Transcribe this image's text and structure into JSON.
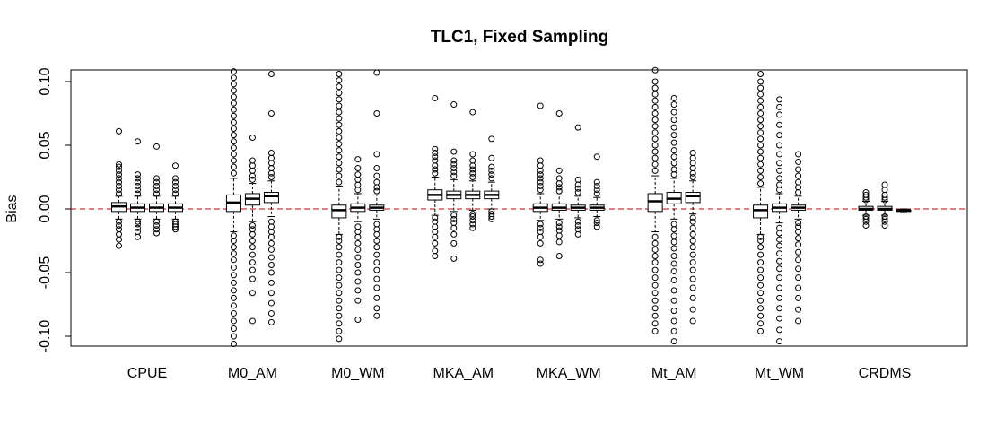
{
  "chart_data": {
    "type": "boxplot",
    "title": "TLC1, Fixed Sampling",
    "xlabel": "",
    "ylabel": "Bias",
    "ylim": [
      -0.11,
      0.11
    ],
    "yticks": [
      -0.1,
      -0.05,
      0.0,
      0.05,
      0.1
    ],
    "ytick_labels": [
      "-0.10",
      "-0.05",
      "0.00",
      "0.05",
      "0.10"
    ],
    "reference_line": {
      "y": 0.0,
      "color": "#cc0000",
      "style": "dashed"
    },
    "grid": false,
    "categories": [
      "CPUE",
      "M0_AM",
      "M0_WM",
      "MKA_AM",
      "MKA_WM",
      "Mt_AM",
      "Mt_WM",
      "CRDMS"
    ],
    "groups": [
      {
        "category": "CPUE",
        "boxes": [
          {
            "q1": -0.002,
            "median": 0.002,
            "q3": 0.005,
            "whisker_low": -0.008,
            "whisker_high": 0.01,
            "outliers": [
              -0.029,
              -0.024,
              -0.02,
              -0.016,
              -0.013,
              -0.01,
              0.012,
              0.015,
              0.018,
              0.021,
              0.024,
              0.027,
              0.03,
              0.033,
              0.035,
              0.061
            ]
          },
          {
            "q1": -0.002,
            "median": 0.001,
            "q3": 0.004,
            "whisker_low": -0.008,
            "whisker_high": 0.01,
            "outliers": [
              -0.022,
              -0.018,
              -0.015,
              -0.012,
              -0.01,
              0.012,
              0.015,
              0.018,
              0.021,
              0.024,
              0.027,
              0.053
            ]
          },
          {
            "q1": -0.002,
            "median": 0.001,
            "q3": 0.004,
            "whisker_low": -0.008,
            "whisker_high": 0.01,
            "outliers": [
              -0.019,
              -0.016,
              -0.013,
              -0.01,
              0.012,
              0.015,
              0.018,
              0.021,
              0.024,
              0.049
            ]
          },
          {
            "q1": -0.002,
            "median": 0.001,
            "q3": 0.004,
            "whisker_low": -0.008,
            "whisker_high": 0.01,
            "outliers": [
              -0.016,
              -0.014,
              -0.012,
              -0.01,
              0.012,
              0.015,
              0.018,
              0.021,
              0.024,
              0.034
            ]
          }
        ]
      },
      {
        "category": "M0_AM",
        "boxes": [
          {
            "q1": -0.002,
            "median": 0.005,
            "q3": 0.011,
            "whisker_low": -0.018,
            "whisker_high": 0.024,
            "outliers": [
              -0.106,
              -0.1,
              -0.094,
              -0.088,
              -0.082,
              -0.076,
              -0.07,
              -0.064,
              -0.058,
              -0.052,
              -0.046,
              -0.04,
              -0.035,
              -0.03,
              -0.025,
              -0.021,
              0.028,
              0.033,
              0.038,
              0.043,
              0.048,
              0.053,
              0.058,
              0.063,
              0.068,
              0.073,
              0.078,
              0.083,
              0.088,
              0.093,
              0.098,
              0.103,
              0.108
            ]
          },
          {
            "q1": 0.003,
            "median": 0.008,
            "q3": 0.012,
            "whisker_low": -0.01,
            "whisker_high": 0.02,
            "outliers": [
              -0.088,
              -0.066,
              -0.055,
              -0.048,
              -0.042,
              -0.036,
              -0.03,
              -0.025,
              -0.02,
              -0.016,
              -0.013,
              0.023,
              0.026,
              0.03,
              0.034,
              0.038,
              0.056
            ]
          },
          {
            "q1": 0.005,
            "median": 0.01,
            "q3": 0.013,
            "whisker_low": -0.006,
            "whisker_high": 0.022,
            "outliers": [
              -0.089,
              -0.082,
              -0.074,
              -0.066,
              -0.058,
              -0.05,
              -0.044,
              -0.038,
              -0.032,
              -0.027,
              -0.022,
              -0.018,
              -0.014,
              -0.01,
              0.025,
              0.028,
              0.032,
              0.036,
              0.04,
              0.044,
              0.075,
              0.106
            ]
          }
        ]
      },
      {
        "category": "M0_WM",
        "boxes": [
          {
            "q1": -0.007,
            "median": -0.001,
            "q3": 0.003,
            "whisker_low": -0.02,
            "whisker_high": 0.018,
            "outliers": [
              -0.108,
              -0.102,
              -0.096,
              -0.09,
              -0.084,
              -0.078,
              -0.072,
              -0.066,
              -0.06,
              -0.054,
              -0.048,
              -0.042,
              -0.036,
              -0.03,
              -0.025,
              -0.022,
              0.021,
              0.026,
              0.031,
              0.036,
              0.041,
              0.046,
              0.051,
              0.056,
              0.061,
              0.066,
              0.071,
              0.076,
              0.081,
              0.086,
              0.091,
              0.096,
              0.101,
              0.106
            ]
          },
          {
            "q1": -0.002,
            "median": 0.001,
            "q3": 0.004,
            "whisker_low": -0.01,
            "whisker_high": 0.012,
            "outliers": [
              -0.087,
              -0.072,
              -0.064,
              -0.057,
              -0.05,
              -0.044,
              -0.038,
              -0.032,
              -0.027,
              -0.022,
              -0.018,
              -0.014,
              0.015,
              0.019,
              0.023,
              0.027,
              0.032,
              0.039
            ]
          },
          {
            "q1": -0.001,
            "median": 0.001,
            "q3": 0.003,
            "whisker_low": -0.008,
            "whisker_high": 0.011,
            "outliers": [
              -0.084,
              -0.078,
              -0.07,
              -0.062,
              -0.055,
              -0.048,
              -0.042,
              -0.036,
              -0.03,
              -0.025,
              -0.02,
              -0.016,
              -0.012,
              0.014,
              0.017,
              0.021,
              0.026,
              0.032,
              0.043,
              0.075,
              0.107
            ]
          }
        ]
      },
      {
        "category": "MKA_AM",
        "boxes": [
          {
            "q1": 0.007,
            "median": 0.011,
            "q3": 0.015,
            "whisker_low": -0.005,
            "whisker_high": 0.025,
            "outliers": [
              -0.037,
              -0.033,
              -0.027,
              -0.022,
              -0.018,
              -0.014,
              -0.01,
              -0.007,
              0.028,
              0.031,
              0.034,
              0.038,
              0.041,
              0.044,
              0.047,
              0.087
            ]
          },
          {
            "q1": 0.008,
            "median": 0.011,
            "q3": 0.014,
            "whisker_low": -0.002,
            "whisker_high": 0.023,
            "outliers": [
              -0.039,
              -0.027,
              -0.02,
              -0.015,
              -0.011,
              -0.008,
              -0.005,
              0.026,
              0.029,
              0.032,
              0.035,
              0.038,
              0.045,
              0.082
            ]
          },
          {
            "q1": 0.008,
            "median": 0.011,
            "q3": 0.014,
            "whisker_low": -0.001,
            "whisker_high": 0.022,
            "outliers": [
              -0.015,
              -0.012,
              -0.009,
              -0.006,
              -0.004,
              0.025,
              0.028,
              0.031,
              0.034,
              0.038,
              0.043,
              0.076
            ]
          },
          {
            "q1": 0.008,
            "median": 0.011,
            "q3": 0.014,
            "whisker_low": 0.0,
            "whisker_high": 0.021,
            "outliers": [
              -0.008,
              -0.006,
              -0.004,
              -0.002,
              0.024,
              0.027,
              0.03,
              0.033,
              0.04,
              0.055
            ]
          }
        ]
      },
      {
        "category": "MKA_WM",
        "boxes": [
          {
            "q1": -0.002,
            "median": 0.001,
            "q3": 0.004,
            "whisker_low": -0.009,
            "whisker_high": 0.012,
            "outliers": [
              -0.043,
              -0.04,
              -0.027,
              -0.022,
              -0.018,
              -0.015,
              -0.012,
              0.015,
              0.018,
              0.021,
              0.024,
              0.027,
              0.03,
              0.034,
              0.038,
              0.081
            ]
          },
          {
            "q1": -0.001,
            "median": 0.001,
            "q3": 0.004,
            "whisker_low": -0.008,
            "whisker_high": 0.011,
            "outliers": [
              -0.037,
              -0.026,
              -0.021,
              -0.017,
              -0.014,
              -0.011,
              0.014,
              0.017,
              0.02,
              0.024,
              0.03,
              0.075
            ]
          },
          {
            "q1": -0.001,
            "median": 0.001,
            "q3": 0.003,
            "whisker_low": -0.007,
            "whisker_high": 0.01,
            "outliers": [
              -0.02,
              -0.016,
              -0.013,
              -0.01,
              0.013,
              0.016,
              0.019,
              0.023,
              0.064
            ]
          },
          {
            "q1": -0.001,
            "median": 0.001,
            "q3": 0.003,
            "whisker_low": -0.006,
            "whisker_high": 0.009,
            "outliers": [
              -0.014,
              -0.011,
              -0.009,
              0.012,
              0.015,
              0.018,
              0.021,
              0.041
            ]
          }
        ]
      },
      {
        "category": "Mt_AM",
        "boxes": [
          {
            "q1": -0.002,
            "median": 0.006,
            "q3": 0.012,
            "whisker_low": -0.018,
            "whisker_high": 0.026,
            "outliers": [
              -0.096,
              -0.09,
              -0.084,
              -0.078,
              -0.072,
              -0.066,
              -0.06,
              -0.054,
              -0.048,
              -0.042,
              -0.037,
              -0.032,
              -0.027,
              -0.022,
              0.03,
              0.035,
              0.04,
              0.045,
              0.05,
              0.055,
              0.06,
              0.065,
              0.07,
              0.075,
              0.08,
              0.085,
              0.09,
              0.095,
              0.1,
              0.109
            ]
          },
          {
            "q1": 0.004,
            "median": 0.008,
            "q3": 0.013,
            "whisker_low": -0.008,
            "whisker_high": 0.024,
            "outliers": [
              -0.104,
              -0.096,
              -0.088,
              -0.08,
              -0.072,
              -0.064,
              -0.056,
              -0.049,
              -0.043,
              -0.037,
              -0.031,
              -0.026,
              -0.021,
              -0.016,
              -0.012,
              0.027,
              0.031,
              0.036,
              0.041,
              0.046,
              0.052,
              0.058,
              0.064,
              0.07,
              0.076,
              0.082,
              0.087
            ]
          },
          {
            "q1": 0.005,
            "median": 0.01,
            "q3": 0.013,
            "whisker_low": -0.004,
            "whisker_high": 0.022,
            "outliers": [
              -0.088,
              -0.079,
              -0.07,
              -0.062,
              -0.055,
              -0.048,
              -0.042,
              -0.036,
              -0.03,
              -0.025,
              -0.02,
              -0.015,
              -0.01,
              -0.007,
              0.025,
              0.028,
              0.032,
              0.036,
              0.04,
              0.044
            ]
          }
        ]
      },
      {
        "category": "Mt_WM",
        "boxes": [
          {
            "q1": -0.007,
            "median": -0.001,
            "q3": 0.003,
            "whisker_low": -0.02,
            "whisker_high": 0.017,
            "outliers": [
              -0.096,
              -0.09,
              -0.084,
              -0.078,
              -0.072,
              -0.066,
              -0.06,
              -0.054,
              -0.048,
              -0.042,
              -0.036,
              -0.03,
              -0.025,
              -0.022,
              0.02,
              0.025,
              0.03,
              0.035,
              0.04,
              0.045,
              0.05,
              0.055,
              0.06,
              0.065,
              0.07,
              0.075,
              0.08,
              0.085,
              0.09,
              0.095,
              0.1,
              0.106
            ]
          },
          {
            "q1": -0.002,
            "median": 0.001,
            "q3": 0.004,
            "whisker_low": -0.011,
            "whisker_high": 0.012,
            "outliers": [
              -0.104,
              -0.095,
              -0.086,
              -0.078,
              -0.07,
              -0.062,
              -0.054,
              -0.047,
              -0.041,
              -0.035,
              -0.029,
              -0.024,
              -0.019,
              -0.015,
              0.015,
              0.019,
              0.024,
              0.03,
              0.036,
              0.043,
              0.05,
              0.058,
              0.066,
              0.074,
              0.08,
              0.086
            ]
          },
          {
            "q1": -0.001,
            "median": 0.001,
            "q3": 0.003,
            "whisker_low": -0.008,
            "whisker_high": 0.01,
            "outliers": [
              -0.088,
              -0.079,
              -0.07,
              -0.062,
              -0.054,
              -0.047,
              -0.04,
              -0.034,
              -0.028,
              -0.023,
              -0.018,
              -0.014,
              -0.011,
              0.013,
              0.017,
              0.021,
              0.026,
              0.031,
              0.037,
              0.043
            ]
          }
        ]
      },
      {
        "category": "CRDMS",
        "boxes": [
          {
            "q1": -0.001,
            "median": 0.0,
            "q3": 0.002,
            "whisker_low": -0.005,
            "whisker_high": 0.006,
            "outliers": [
              -0.013,
              -0.01,
              -0.008,
              -0.006,
              0.007,
              0.009,
              0.011,
              0.013
            ]
          },
          {
            "q1": -0.001,
            "median": 0.0,
            "q3": 0.002,
            "whisker_low": -0.005,
            "whisker_high": 0.006,
            "outliers": [
              -0.013,
              -0.01,
              -0.008,
              -0.006,
              0.007,
              0.009,
              0.011,
              0.015,
              0.019
            ]
          },
          {
            "q1": -0.002,
            "median": -0.001,
            "q3": -0.001,
            "whisker_low": -0.003,
            "whisker_high": 0.0,
            "outliers": []
          }
        ]
      }
    ]
  }
}
